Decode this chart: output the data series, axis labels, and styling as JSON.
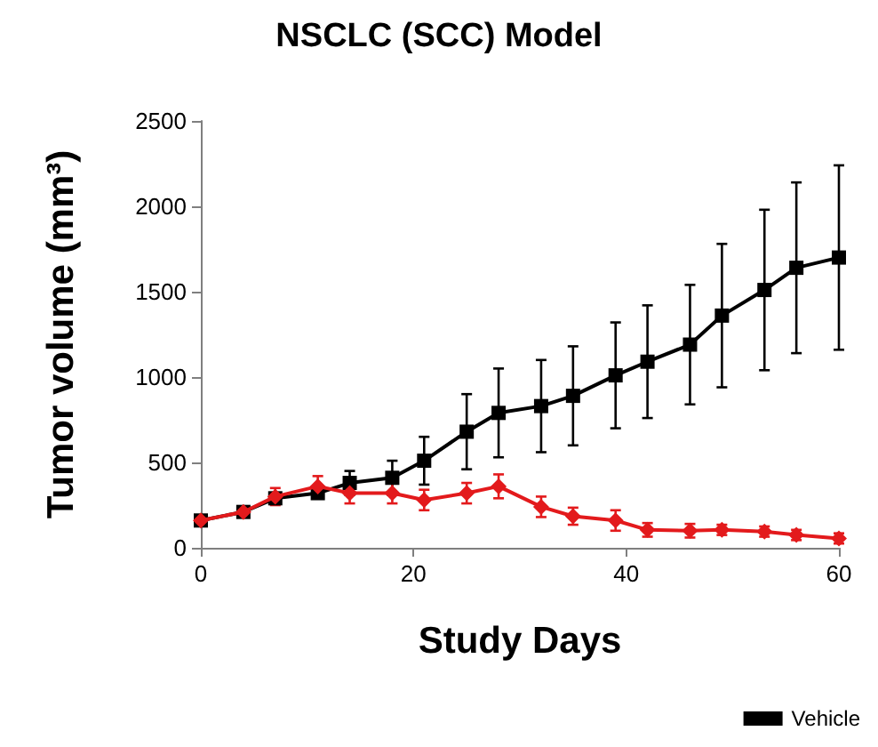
{
  "chart_data": {
    "type": "line",
    "title": "NSCLC (SCC) Model",
    "xlabel": "Study Days",
    "ylabel": "Tumor volume (mm³)",
    "x": [
      0,
      4,
      7,
      11,
      14,
      18,
      21,
      25,
      28,
      32,
      35,
      39,
      42,
      46,
      49,
      53,
      56,
      60
    ],
    "xlim": [
      0,
      60
    ],
    "xticks": [
      0,
      20,
      40,
      60
    ],
    "ylim": [
      0,
      2500
    ],
    "yticks": [
      0,
      500,
      1000,
      1500,
      2000,
      2500
    ],
    "grid": false,
    "legend": "bottom right",
    "marker": "square",
    "line_style": "solid",
    "series": [
      {
        "name": "Vehicle",
        "color": "#000000",
        "values": [
          160,
          210,
          290,
          320,
          380,
          410,
          510,
          680,
          790,
          830,
          890,
          1010,
          1090,
          1190,
          1360,
          1510,
          1640,
          1700
        ],
        "errors": [
          20,
          20,
          20,
          30,
          70,
          100,
          140,
          220,
          260,
          270,
          290,
          310,
          330,
          350,
          420,
          470,
          500,
          540
        ]
      },
      {
        "color": "#e31a1c",
        "marker": "diamond",
        "values": [
          160,
          210,
          300,
          360,
          320,
          320,
          280,
          320,
          360,
          240,
          185,
          160,
          105,
          100,
          105,
          95,
          75,
          55
        ],
        "errors": [
          20,
          20,
          50,
          60,
          60,
          60,
          60,
          60,
          70,
          60,
          50,
          60,
          40,
          40,
          30,
          30,
          30,
          30
        ]
      }
    ]
  }
}
